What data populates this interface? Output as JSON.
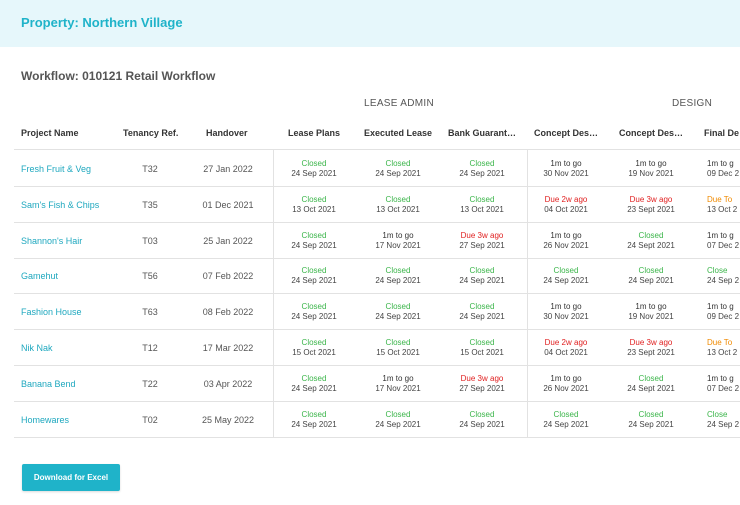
{
  "header": {
    "property_title": "Property: Northern Village"
  },
  "workflow_title": "Workflow: 010121 Retail Workflow",
  "groups": {
    "lease_admin": "LEASE ADMIN",
    "design": "DESIGN"
  },
  "columns": {
    "project_name": "Project Name",
    "tenancy_ref": "Tenancy Ref.",
    "handover": "Handover",
    "lease_plans": "Lease Plans",
    "executed_lease": "Executed Lease",
    "bank_guarantee": "Bank Guarant…",
    "concept_des_1": "Concept Des…",
    "concept_des_2": "Concept Des…",
    "final_de": "Final De"
  },
  "rows": [
    {
      "name": "Fresh Fruit & Veg",
      "ref": "T32",
      "handover": "27 Jan 2022",
      "cells": [
        {
          "status": "Closed",
          "date": "24 Sep 2021",
          "color": "green"
        },
        {
          "status": "Closed",
          "date": "24 Sep 2021",
          "color": "green"
        },
        {
          "status": "Closed",
          "date": "24 Sep 2021",
          "color": "green"
        },
        {
          "status": "1m to go",
          "date": "30 Nov 2021",
          "color": "dark"
        },
        {
          "status": "1m to go",
          "date": "19 Nov 2021",
          "color": "dark"
        },
        {
          "status": "1m to g",
          "date": "09 Dec 2",
          "color": "dark"
        }
      ]
    },
    {
      "name": "Sam's Fish & Chips",
      "ref": "T35",
      "handover": "01 Dec 2021",
      "cells": [
        {
          "status": "Closed",
          "date": "13 Oct 2021",
          "color": "green"
        },
        {
          "status": "Closed",
          "date": "13 Oct 2021",
          "color": "green"
        },
        {
          "status": "Closed",
          "date": "13 Oct 2021",
          "color": "green"
        },
        {
          "status": "Due 2w ago",
          "date": "04 Oct 2021",
          "color": "red"
        },
        {
          "status": "Due 3w ago",
          "date": "23 Sept 2021",
          "color": "red"
        },
        {
          "status": "Due To",
          "date": "13 Oct 2",
          "color": "orange"
        }
      ]
    },
    {
      "name": "Shannon's Hair",
      "ref": "T03",
      "handover": "25 Jan 2022",
      "cells": [
        {
          "status": "Closed",
          "date": "24 Sep 2021",
          "color": "green"
        },
        {
          "status": "1m to go",
          "date": "17 Nov 2021",
          "color": "dark"
        },
        {
          "status": "Due 3w ago",
          "date": "27 Sep 2021",
          "color": "red"
        },
        {
          "status": "1m to go",
          "date": "26 Nov 2021",
          "color": "dark"
        },
        {
          "status": "Closed",
          "date": "24 Sept 2021",
          "color": "green"
        },
        {
          "status": "1m to g",
          "date": "07 Dec 2",
          "color": "dark"
        }
      ]
    },
    {
      "name": "Gamehut",
      "ref": "T56",
      "handover": "07 Feb 2022",
      "cells": [
        {
          "status": "Closed",
          "date": "24 Sep 2021",
          "color": "green"
        },
        {
          "status": "Closed",
          "date": "24 Sep 2021",
          "color": "green"
        },
        {
          "status": "Closed",
          "date": "24 Sep 2021",
          "color": "green"
        },
        {
          "status": "Closed",
          "date": "24 Sep 2021",
          "color": "green"
        },
        {
          "status": "Closed",
          "date": "24 Sep 2021",
          "color": "green"
        },
        {
          "status": "Close",
          "date": "24 Sep 2",
          "color": "green"
        }
      ]
    },
    {
      "name": "Fashion House",
      "ref": "T63",
      "handover": "08 Feb 2022",
      "cells": [
        {
          "status": "Closed",
          "date": "24 Sep 2021",
          "color": "green"
        },
        {
          "status": "Closed",
          "date": "24 Sep 2021",
          "color": "green"
        },
        {
          "status": "Closed",
          "date": "24 Sep 2021",
          "color": "green"
        },
        {
          "status": "1m to go",
          "date": "30 Nov 2021",
          "color": "dark"
        },
        {
          "status": "1m to go",
          "date": "19 Nov 2021",
          "color": "dark"
        },
        {
          "status": "1m to g",
          "date": "09 Dec 2",
          "color": "dark"
        }
      ]
    },
    {
      "name": "Nik Nak",
      "ref": "T12",
      "handover": "17 Mar 2022",
      "cells": [
        {
          "status": "Closed",
          "date": "15 Oct 2021",
          "color": "green"
        },
        {
          "status": "Closed",
          "date": "15 Oct 2021",
          "color": "green"
        },
        {
          "status": "Closed",
          "date": "15 Oct 2021",
          "color": "green"
        },
        {
          "status": "Due 2w ago",
          "date": "04 Oct 2021",
          "color": "red"
        },
        {
          "status": "Due 3w ago",
          "date": "23 Sept 2021",
          "color": "red"
        },
        {
          "status": "Due To",
          "date": "13 Oct 2",
          "color": "orange"
        }
      ]
    },
    {
      "name": "Banana Bend",
      "ref": "T22",
      "handover": "03 Apr 2022",
      "cells": [
        {
          "status": "Closed",
          "date": "24 Sep 2021",
          "color": "green"
        },
        {
          "status": "1m to go",
          "date": "17 Nov 2021",
          "color": "dark"
        },
        {
          "status": "Due 3w ago",
          "date": "27 Sep 2021",
          "color": "red"
        },
        {
          "status": "1m to go",
          "date": "26 Nov 2021",
          "color": "dark"
        },
        {
          "status": "Closed",
          "date": "24 Sept 2021",
          "color": "green"
        },
        {
          "status": "1m to g",
          "date": "07 Dec 2",
          "color": "dark"
        }
      ]
    },
    {
      "name": "Homewares",
      "ref": "T02",
      "handover": "25 May 2022",
      "cells": [
        {
          "status": "Closed",
          "date": "24 Sep 2021",
          "color": "green"
        },
        {
          "status": "Closed",
          "date": "24 Sep 2021",
          "color": "green"
        },
        {
          "status": "Closed",
          "date": "24 Sep 2021",
          "color": "green"
        },
        {
          "status": "Closed",
          "date": "24 Sep 2021",
          "color": "green"
        },
        {
          "status": "Closed",
          "date": "24 Sep 2021",
          "color": "green"
        },
        {
          "status": "Close",
          "date": "24 Sep 2",
          "color": "green"
        }
      ]
    }
  ],
  "download_button": "Download for Excel",
  "colors": {
    "accent": "#1fb3c9",
    "closed": "#3bb54a",
    "overdue": "#e02020",
    "due_today": "#f08a00"
  }
}
